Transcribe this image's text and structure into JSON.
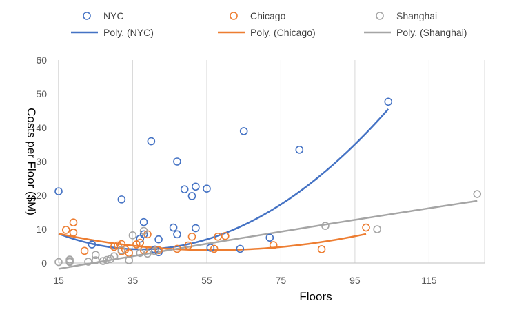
{
  "chart_data": {
    "type": "scatter",
    "xlabel": "Floors",
    "ylabel": "Costs per Floor ($M)",
    "xlim": [
      15,
      130
    ],
    "ylim": [
      0,
      60
    ],
    "x_ticks": [
      "15",
      "35",
      "55",
      "75",
      "95",
      "115"
    ],
    "y_ticks": [
      "0",
      "10",
      "20",
      "30",
      "40",
      "50",
      "60"
    ],
    "grid": "vertical",
    "legend_position": "top",
    "series": [
      {
        "name": "NYC",
        "color": "#4472C4",
        "points": [
          [
            15,
            21.2
          ],
          [
            24,
            5.5
          ],
          [
            32,
            18.8
          ],
          [
            37,
            7.2
          ],
          [
            38,
            12.1
          ],
          [
            38,
            8.5
          ],
          [
            40,
            36
          ],
          [
            41,
            4
          ],
          [
            42,
            7
          ],
          [
            42,
            3.2
          ],
          [
            46,
            10.5
          ],
          [
            47,
            8.5
          ],
          [
            47,
            30
          ],
          [
            49,
            21.8
          ],
          [
            51,
            19.8
          ],
          [
            52,
            10.3
          ],
          [
            52,
            22.6
          ],
          [
            55,
            22
          ],
          [
            56,
            4.5
          ],
          [
            64,
            4.2
          ],
          [
            65,
            39
          ],
          [
            72,
            7.5
          ],
          [
            80,
            33.5
          ],
          [
            104,
            47.7
          ]
        ]
      },
      {
        "name": "Chicago",
        "color": "#ED7D31",
        "points": [
          [
            17,
            9.8
          ],
          [
            19,
            12
          ],
          [
            19,
            9
          ],
          [
            22,
            3.6
          ],
          [
            30,
            4.8
          ],
          [
            31,
            5.2
          ],
          [
            32,
            3.5
          ],
          [
            32,
            5.6
          ],
          [
            33,
            4
          ],
          [
            34,
            3
          ],
          [
            36,
            5.5
          ],
          [
            37,
            6
          ],
          [
            38,
            3.8
          ],
          [
            39,
            8.5
          ],
          [
            42,
            3.8
          ],
          [
            47,
            4.2
          ],
          [
            50,
            5.2
          ],
          [
            51,
            7.8
          ],
          [
            57,
            4.2
          ],
          [
            58,
            7.8
          ],
          [
            60,
            8
          ],
          [
            73,
            5.3
          ],
          [
            86,
            4.1
          ],
          [
            98,
            10.5
          ]
        ]
      },
      {
        "name": "Shanghai",
        "color": "#A5A5A5",
        "points": [
          [
            15,
            0.3
          ],
          [
            18,
            0.3
          ],
          [
            18,
            0.6
          ],
          [
            18,
            1
          ],
          [
            23,
            0.4
          ],
          [
            25,
            2.4
          ],
          [
            25,
            0.8
          ],
          [
            27,
            0.6
          ],
          [
            28,
            0.9
          ],
          [
            29,
            1.2
          ],
          [
            30,
            2
          ],
          [
            32,
            3.8
          ],
          [
            34,
            0.8
          ],
          [
            35,
            8.2
          ],
          [
            37,
            3
          ],
          [
            38,
            9.5
          ],
          [
            39,
            2.8
          ],
          [
            41,
            3.5
          ],
          [
            87,
            11
          ],
          [
            101,
            10
          ],
          [
            128,
            20.4
          ]
        ]
      }
    ],
    "trendlines": [
      {
        "name": "Poly. (NYC)",
        "color": "#4472C4",
        "x_range": [
          15,
          104
        ],
        "coef": [
          16.955,
          -0.6925,
          0.0093
        ]
      },
      {
        "name": "Poly. (Chicago)",
        "color": "#ED7D31",
        "x_range": [
          15,
          98
        ],
        "coef": [
          12.826,
          -0.3176,
          0.0028
        ]
      },
      {
        "name": "Poly. (Shanghai)",
        "color": "#A5A5A5",
        "x_range": [
          15,
          128
        ],
        "coef": [
          -4.58,
          0.1922,
          -0.0001
        ]
      }
    ]
  }
}
